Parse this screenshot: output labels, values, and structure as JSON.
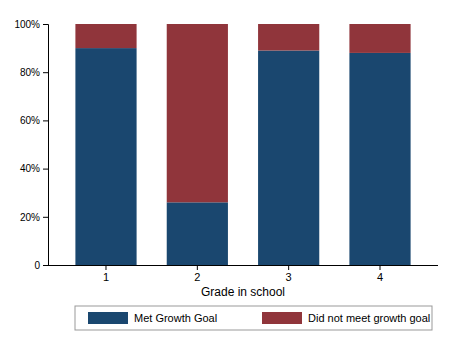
{
  "chart_data": {
    "type": "bar",
    "stacked": true,
    "x_label": "Grade in school",
    "categories": [
      "1",
      "2",
      "3",
      "4"
    ],
    "series": [
      {
        "name": "Met Growth Goal",
        "color": "#1a476f",
        "values": [
          90,
          26,
          89,
          88
        ]
      },
      {
        "name": "Did not meet growth goal",
        "color": "#90353b",
        "values": [
          10,
          74,
          11,
          12
        ]
      }
    ],
    "ylim": [
      0,
      100
    ],
    "yticks": [
      0,
      {
        "value": 20,
        "label": "20%"
      },
      {
        "value": 40,
        "label": "40%"
      },
      {
        "value": 60,
        "label": "60%"
      },
      {
        "value": 80,
        "label": "80%"
      },
      {
        "value": 100,
        "label": "100%"
      }
    ],
    "grid": false,
    "legend": "bottom"
  }
}
